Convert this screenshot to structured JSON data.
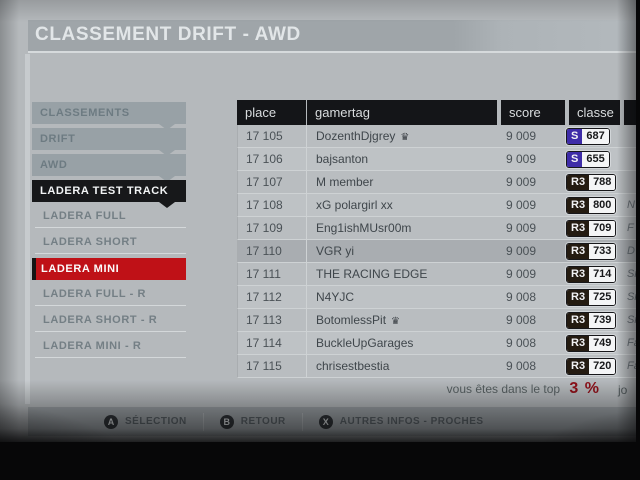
{
  "header": {
    "title": "CLASSEMENT DRIFT - AWD"
  },
  "sidebar": {
    "items": [
      {
        "label": "CLASSEMENTS",
        "type": "breadcrumb"
      },
      {
        "label": "DRIFT",
        "type": "breadcrumb"
      },
      {
        "label": "AWD",
        "type": "breadcrumb"
      },
      {
        "label": "LADERA TEST TRACK",
        "type": "active-section"
      },
      {
        "label": "LADERA FULL",
        "type": "option"
      },
      {
        "label": "LADERA SHORT",
        "type": "option"
      },
      {
        "label": "LADERA MINI",
        "type": "selected"
      },
      {
        "label": "LADERA FULL - R",
        "type": "option"
      },
      {
        "label": "LADERA SHORT - R",
        "type": "option"
      },
      {
        "label": "LADERA MINI - R",
        "type": "option"
      }
    ]
  },
  "table": {
    "columns": [
      "place",
      "gamertag",
      "score",
      "classe"
    ],
    "rows": [
      {
        "place": "17 105",
        "gamertag": "DozenthDjgrey",
        "crown": true,
        "score": "9 009",
        "class_letter": "S",
        "class_value": "687",
        "car_partial": "",
        "highlighted": false
      },
      {
        "place": "17 106",
        "gamertag": "bajsanton",
        "crown": false,
        "score": "9 009",
        "class_letter": "S",
        "class_value": "655",
        "car_partial": "",
        "highlighted": false
      },
      {
        "place": "17 107",
        "gamertag": "M member",
        "crown": false,
        "score": "9 009",
        "class_letter": "R3",
        "class_value": "788",
        "car_partial": "",
        "highlighted": false
      },
      {
        "place": "17 108",
        "gamertag": "xG polargirl xx",
        "crown": false,
        "score": "9 009",
        "class_letter": "R3",
        "class_value": "800",
        "car_partial": "N",
        "highlighted": false
      },
      {
        "place": "17 109",
        "gamertag": "Eng1ishMUsr00m",
        "crown": false,
        "score": "9 009",
        "class_letter": "R3",
        "class_value": "709",
        "car_partial": "F",
        "highlighted": false
      },
      {
        "place": "17 110",
        "gamertag": "VGR yi",
        "crown": false,
        "score": "9 009",
        "class_letter": "R3",
        "class_value": "733",
        "car_partial": "D",
        "highlighted": true
      },
      {
        "place": "17 111",
        "gamertag": "THE RACING EDGE",
        "crown": false,
        "score": "9 009",
        "class_letter": "R3",
        "class_value": "714",
        "car_partial": "Si",
        "highlighted": false
      },
      {
        "place": "17 112",
        "gamertag": "N4YJC",
        "crown": false,
        "score": "9 008",
        "class_letter": "R3",
        "class_value": "725",
        "car_partial": "Sil",
        "highlighted": false
      },
      {
        "place": "17 113",
        "gamertag": "BotomlessPit",
        "crown": true,
        "score": "9 008",
        "class_letter": "R3",
        "class_value": "739",
        "car_partial": "Silv",
        "highlighted": false
      },
      {
        "place": "17 114",
        "gamertag": "BuckleUpGarages",
        "crown": false,
        "score": "9 008",
        "class_letter": "R3",
        "class_value": "749",
        "car_partial": "Fair",
        "highlighted": false
      },
      {
        "place": "17 115",
        "gamertag": "chrisestbestia",
        "crown": false,
        "score": "9 008",
        "class_letter": "R3",
        "class_value": "720",
        "car_partial": "Fair",
        "highlighted": false
      }
    ]
  },
  "footer": {
    "rank_text": "vous êtes dans le top",
    "rank_value": "3 %",
    "partial_right": "jo"
  },
  "controls": [
    {
      "button": "A",
      "label": "SÉLECTION"
    },
    {
      "button": "B",
      "label": "RETOUR"
    },
    {
      "button": "X",
      "label": "AUTRES INFOS - PROCHES"
    }
  ],
  "colors": {
    "accent_red": "#bf1117",
    "class_colors": {
      "S": "#3e2ca8",
      "R3": "#241b11"
    },
    "crown_glyph": "♛"
  }
}
